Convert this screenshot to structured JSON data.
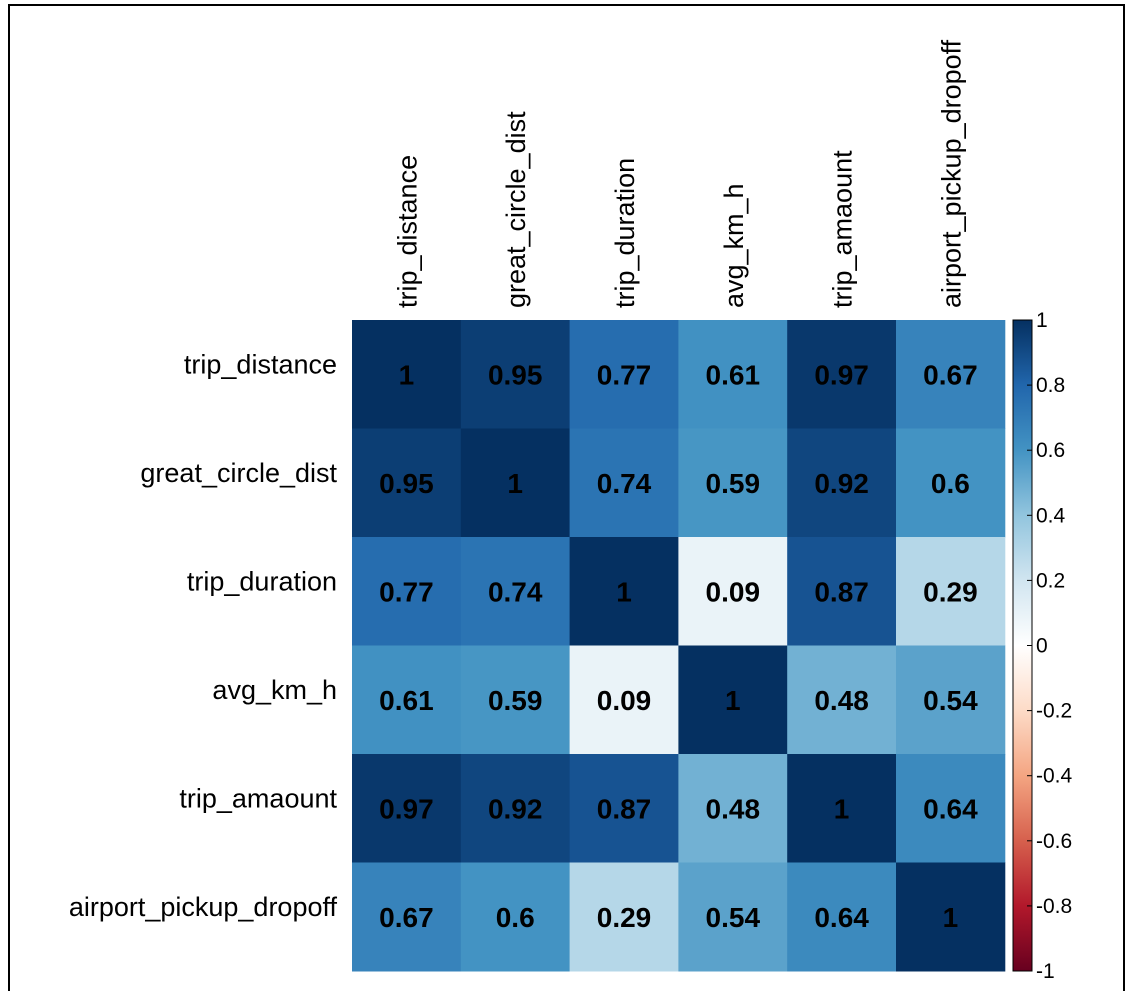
{
  "chart_data": {
    "type": "heatmap",
    "variables": [
      "trip_distance",
      "great_circle_dist",
      "trip_duration",
      "avg_km_h",
      "trip_amaount",
      "airport_pickup_dropoff"
    ],
    "matrix": [
      [
        1,
        0.95,
        0.77,
        0.61,
        0.97,
        0.67
      ],
      [
        0.95,
        1,
        0.74,
        0.59,
        0.92,
        0.6
      ],
      [
        0.77,
        0.74,
        1,
        0.09,
        0.87,
        0.29
      ],
      [
        0.61,
        0.59,
        0.09,
        1,
        0.48,
        0.54
      ],
      [
        0.97,
        0.92,
        0.87,
        0.48,
        1,
        0.64
      ],
      [
        0.67,
        0.6,
        0.29,
        0.54,
        0.64,
        1
      ]
    ],
    "cell_labels": [
      [
        "1",
        "0.95",
        "0.77",
        "0.61",
        "0.97",
        "0.67"
      ],
      [
        "0.95",
        "1",
        "0.74",
        "0.59",
        "0.92",
        "0.6"
      ],
      [
        "0.77",
        "0.74",
        "1",
        "0.09",
        "0.87",
        "0.29"
      ],
      [
        "0.61",
        "0.59",
        "0.09",
        "1",
        "0.48",
        "0.54"
      ],
      [
        "0.97",
        "0.92",
        "0.87",
        "0.48",
        "1",
        "0.64"
      ],
      [
        "0.67",
        "0.6",
        "0.29",
        "0.54",
        "0.64",
        "1"
      ]
    ],
    "colorbar": {
      "range": [
        -1,
        1
      ],
      "ticks": [
        "1",
        "0.8",
        "0.6",
        "0.4",
        "0.2",
        "0",
        "-0.2",
        "-0.4",
        "-0.6",
        "-0.8",
        "-1"
      ],
      "tick_values": [
        1,
        0.8,
        0.6,
        0.4,
        0.2,
        0,
        -0.2,
        -0.4,
        -0.6,
        -0.8,
        -1
      ],
      "palette": [
        "#67001F",
        "#B2182B",
        "#D6604D",
        "#F4A582",
        "#FDDBC7",
        "#FFFFFF",
        "#D1E5F0",
        "#92C5DE",
        "#4393C3",
        "#2166AC",
        "#053061"
      ]
    },
    "grid": false,
    "legend_placement": "right"
  }
}
